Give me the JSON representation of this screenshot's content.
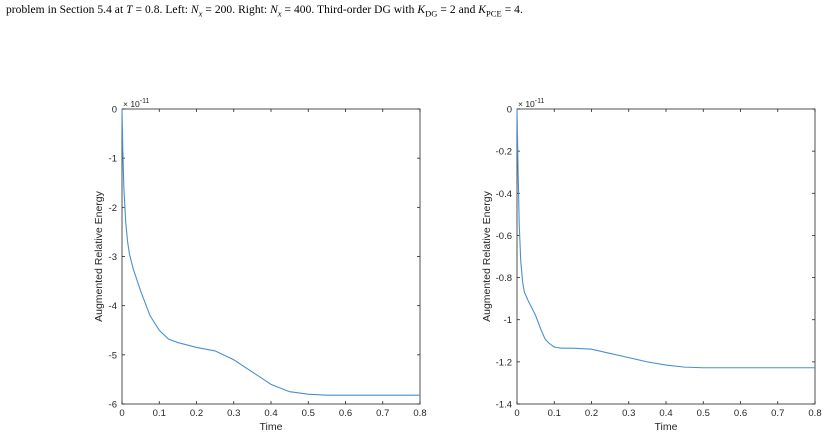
{
  "caption": {
    "part1": "problem in Section 5.4 at ",
    "T_sym": "T",
    "part2": " = 0.8. Left: ",
    "N_sym": "N",
    "x_sub": "x",
    "part3": " = 200. Right: ",
    "part4": " = 400. Third-order DG with ",
    "K_sym": "K",
    "dg_sub": "DG",
    "part5": " = 2 and ",
    "pce_sub": "PCE",
    "part6": " = 4."
  },
  "colors": {
    "line": "#4a90d0",
    "axis": "#262626"
  },
  "chart_data": [
    {
      "type": "line",
      "xlabel": "Time",
      "ylabel": "Augmented Relative Energy",
      "exponent": "× 10",
      "exponent_power": "-11",
      "xlim": [
        0,
        0.8
      ],
      "ylim": [
        -6,
        0
      ],
      "xticks": [
        0,
        0.1,
        0.2,
        0.3,
        0.4,
        0.5,
        0.6,
        0.7,
        0.8
      ],
      "xtick_labels": [
        "0",
        "0.1",
        "0.2",
        "0.3",
        "0.4",
        "0.5",
        "0.6",
        "0.7",
        "0.8"
      ],
      "yticks": [
        0,
        -1,
        -2,
        -3,
        -4,
        -5,
        -6
      ],
      "ytick_labels": [
        "0",
        "-1",
        "-2",
        "-3",
        "-4",
        "-5",
        "-6"
      ],
      "x": [
        0,
        0.002,
        0.005,
        0.01,
        0.015,
        0.02,
        0.03,
        0.05,
        0.075,
        0.1,
        0.125,
        0.15,
        0.2,
        0.25,
        0.3,
        0.35,
        0.4,
        0.45,
        0.5,
        0.55,
        0.6,
        0.7,
        0.8
      ],
      "y": [
        0,
        -0.8,
        -1.6,
        -2.3,
        -2.7,
        -2.95,
        -3.25,
        -3.7,
        -4.2,
        -4.5,
        -4.68,
        -4.75,
        -4.85,
        -4.92,
        -5.1,
        -5.35,
        -5.6,
        -5.75,
        -5.8,
        -5.82,
        -5.82,
        -5.82,
        -5.82
      ]
    },
    {
      "type": "line",
      "xlabel": "Time",
      "ylabel": "Augmented Relative Energy",
      "exponent": "× 10",
      "exponent_power": "-11",
      "xlim": [
        0,
        0.8
      ],
      "ylim": [
        -1.4,
        0
      ],
      "xticks": [
        0,
        0.1,
        0.2,
        0.3,
        0.4,
        0.5,
        0.6,
        0.7,
        0.8
      ],
      "xtick_labels": [
        "0",
        "0.1",
        "0.2",
        "0.3",
        "0.4",
        "0.5",
        "0.6",
        "0.7",
        "0.8"
      ],
      "yticks": [
        0,
        -0.2,
        -0.4,
        -0.6,
        -0.8,
        -1,
        -1.2,
        -1.4
      ],
      "ytick_labels": [
        "0",
        "-0.2",
        "-0.4",
        "-0.6",
        "-0.8",
        "-1",
        "-1.2",
        "-1.4"
      ],
      "x": [
        0,
        0.003,
        0.006,
        0.01,
        0.015,
        0.02,
        0.03,
        0.05,
        0.065,
        0.075,
        0.085,
        0.1,
        0.12,
        0.15,
        0.2,
        0.25,
        0.3,
        0.35,
        0.4,
        0.45,
        0.5,
        0.6,
        0.8
      ],
      "y": [
        0,
        -0.3,
        -0.55,
        -0.72,
        -0.82,
        -0.87,
        -0.91,
        -0.98,
        -1.05,
        -1.09,
        -1.11,
        -1.13,
        -1.135,
        -1.135,
        -1.14,
        -1.16,
        -1.18,
        -1.2,
        -1.215,
        -1.225,
        -1.228,
        -1.228,
        -1.228
      ]
    }
  ]
}
